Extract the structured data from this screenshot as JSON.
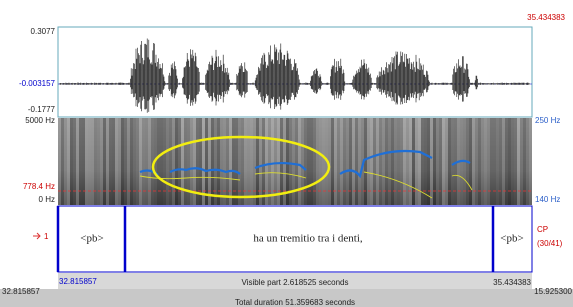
{
  "window": {
    "top_right_time": "35.434383"
  },
  "waveform": {
    "max": "0.3077",
    "mid": "-0.003157",
    "min": "-0.1777"
  },
  "spectrogram": {
    "top": "5000 Hz",
    "cursor": "778.4 Hz",
    "bottom": "0 Hz",
    "pitch_top": "250 Hz",
    "pitch_bottom": "140 Hz"
  },
  "tier": {
    "number": "1",
    "intervals": [
      "<pb>",
      "ha un tremitio tra i denti,",
      "<pb>"
    ],
    "name": "CP",
    "count": "(30/41)"
  },
  "footer": {
    "visible_start": "32.815857",
    "visible_part": "Visible part 2.618525 seconds",
    "visible_end": "35.434383",
    "total_start": "32.815857",
    "total_end": "15.925300",
    "total_duration": "Total duration 51.359683 seconds"
  }
}
